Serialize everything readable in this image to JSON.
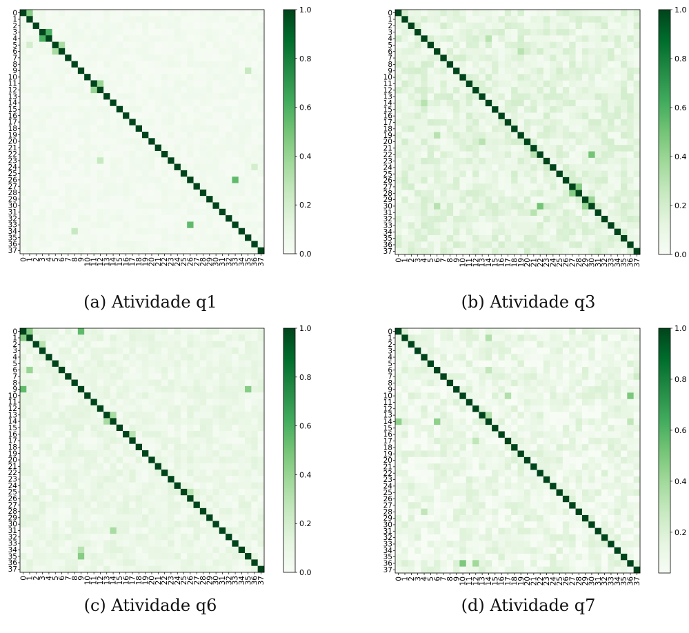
{
  "chart_data": [
    {
      "type": "heatmap",
      "caption": "(a) Atividade q1",
      "size": 38,
      "labels": [
        "0",
        "1",
        "2",
        "3",
        "4",
        "5",
        "6",
        "7",
        "8",
        "9",
        "10",
        "11",
        "12",
        "13",
        "14",
        "15",
        "16",
        "17",
        "18",
        "19",
        "20",
        "21",
        "22",
        "23",
        "24",
        "25",
        "26",
        "27",
        "28",
        "29",
        "30",
        "31",
        "32",
        "33",
        "34",
        "35",
        "36",
        "37"
      ],
      "colorbar_ticks": [
        0.0,
        0.2,
        0.4,
        0.6,
        0.8,
        1.0
      ],
      "colorbar_tick_labels": [
        "0.0",
        "0.2",
        "0.4",
        "0.6",
        "0.8",
        "1.0"
      ],
      "vmin": 0.0,
      "vmax": 1.0,
      "colormap": "Greens",
      "diagonal_value": 1.0,
      "background_level": 0.04,
      "notable_cells": [
        [
          0,
          1,
          0.45
        ],
        [
          3,
          4,
          0.6
        ],
        [
          4,
          3,
          0.6
        ],
        [
          5,
          6,
          0.35
        ],
        [
          6,
          5,
          0.35
        ],
        [
          11,
          12,
          0.4
        ],
        [
          12,
          11,
          0.4
        ],
        [
          26,
          33,
          0.55
        ],
        [
          33,
          26,
          0.55
        ],
        [
          34,
          8,
          0.25
        ],
        [
          9,
          35,
          0.25
        ],
        [
          5,
          1,
          0.2
        ],
        [
          23,
          12,
          0.25
        ],
        [
          24,
          36,
          0.2
        ]
      ]
    },
    {
      "type": "heatmap",
      "caption": "(b) Atividade q3",
      "size": 38,
      "labels": [
        "0",
        "1",
        "2",
        "3",
        "4",
        "5",
        "6",
        "7",
        "8",
        "9",
        "10",
        "11",
        "12",
        "13",
        "14",
        "15",
        "16",
        "17",
        "18",
        "19",
        "20",
        "21",
        "22",
        "23",
        "24",
        "25",
        "26",
        "27",
        "28",
        "29",
        "30",
        "31",
        "32",
        "33",
        "34",
        "35",
        "36",
        "37"
      ],
      "colorbar_ticks": [
        0.0,
        0.2,
        0.4,
        0.6,
        0.8,
        1.0
      ],
      "colorbar_tick_labels": [
        "0.0",
        "0.2",
        "0.4",
        "0.6",
        "0.8",
        "1.0"
      ],
      "vmin": 0.0,
      "vmax": 1.0,
      "colormap": "Greens",
      "diagonal_value": 1.0,
      "background_level": 0.13,
      "notable_cells": [
        [
          30,
          22,
          0.5
        ],
        [
          22,
          30,
          0.5
        ],
        [
          27,
          28,
          0.45
        ],
        [
          28,
          27,
          0.45
        ],
        [
          29,
          30,
          0.4
        ],
        [
          30,
          29,
          0.4
        ],
        [
          4,
          14,
          0.3
        ],
        [
          14,
          4,
          0.3
        ],
        [
          19,
          6,
          0.3
        ],
        [
          6,
          19,
          0.3
        ],
        [
          20,
          13,
          0.3
        ],
        [
          30,
          6,
          0.3
        ],
        [
          22,
          21,
          0.3
        ],
        [
          31,
          21,
          0.3
        ]
      ]
    },
    {
      "type": "heatmap",
      "caption": "(c) Atividade q6",
      "size": 38,
      "labels": [
        "0",
        "1",
        "2",
        "3",
        "4",
        "5",
        "6",
        "7",
        "8",
        "9",
        "10",
        "11",
        "12",
        "13",
        "14",
        "15",
        "16",
        "17",
        "18",
        "19",
        "20",
        "21",
        "22",
        "23",
        "24",
        "25",
        "26",
        "27",
        "28",
        "29",
        "30",
        "31",
        "32",
        "33",
        "34",
        "35",
        "36",
        "37"
      ],
      "colorbar_ticks": [
        0.0,
        0.2,
        0.4,
        0.6,
        0.8,
        1.0
      ],
      "colorbar_tick_labels": [
        "0.0",
        "0.2",
        "0.4",
        "0.6",
        "0.8",
        "1.0"
      ],
      "vmin": 0.0,
      "vmax": 1.0,
      "colormap": "Greens",
      "diagonal_value": 1.0,
      "background_level": 0.09,
      "notable_cells": [
        [
          0,
          9,
          0.55
        ],
        [
          9,
          0,
          0.55
        ],
        [
          0,
          1,
          0.45
        ],
        [
          1,
          0,
          0.45
        ],
        [
          6,
          1,
          0.4
        ],
        [
          9,
          35,
          0.45
        ],
        [
          35,
          9,
          0.45
        ],
        [
          2,
          3,
          0.3
        ],
        [
          13,
          14,
          0.35
        ],
        [
          14,
          13,
          0.35
        ],
        [
          16,
          17,
          0.3
        ],
        [
          31,
          14,
          0.35
        ],
        [
          34,
          9,
          0.3
        ],
        [
          25,
          26,
          0.3
        ]
      ]
    },
    {
      "type": "heatmap",
      "caption": "(d) Atividade q7",
      "size": 38,
      "labels": [
        "0",
        "1",
        "2",
        "3",
        "4",
        "5",
        "6",
        "7",
        "8",
        "9",
        "10",
        "11",
        "12",
        "13",
        "14",
        "15",
        "16",
        "17",
        "18",
        "19",
        "20",
        "21",
        "22",
        "23",
        "24",
        "25",
        "26",
        "27",
        "28",
        "29",
        "30",
        "31",
        "32",
        "33",
        "34",
        "35",
        "36",
        "37"
      ],
      "colorbar_ticks": [
        0.2,
        0.4,
        0.6,
        0.8,
        1.0
      ],
      "colorbar_tick_labels": [
        "0.2",
        "0.4",
        "0.6",
        "0.8",
        "1.0"
      ],
      "vmin": 0.04,
      "vmax": 1.0,
      "colormap": "Greens",
      "diagonal_value": 1.0,
      "background_level": 0.13,
      "notable_cells": [
        [
          14,
          0,
          0.45
        ],
        [
          14,
          6,
          0.45
        ],
        [
          10,
          36,
          0.5
        ],
        [
          36,
          10,
          0.5
        ],
        [
          10,
          17,
          0.35
        ],
        [
          1,
          14,
          0.35
        ],
        [
          36,
          12,
          0.4
        ],
        [
          28,
          4,
          0.3
        ],
        [
          17,
          12,
          0.3
        ],
        [
          6,
          14,
          0.3
        ],
        [
          14,
          36,
          0.3
        ],
        [
          7,
          37,
          0.25
        ],
        [
          13,
          14,
          0.35
        ]
      ]
    }
  ]
}
